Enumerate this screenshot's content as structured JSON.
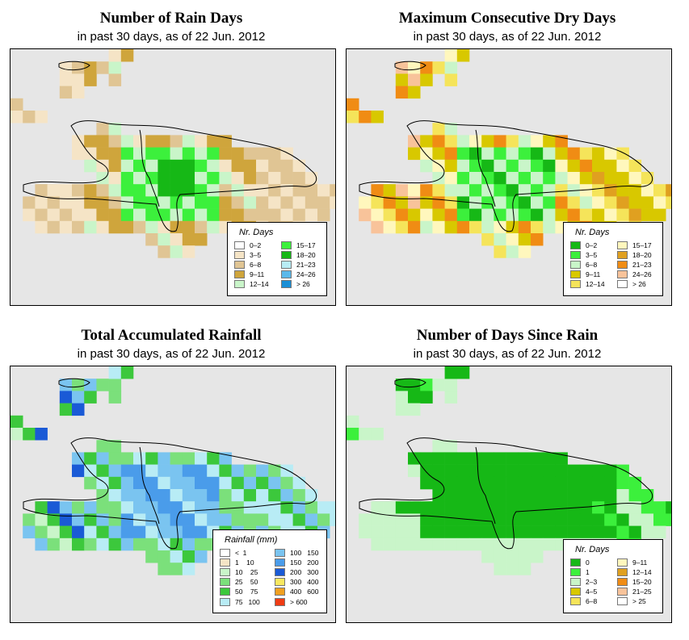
{
  "panels": [
    {
      "title": "Number of Rain Days",
      "subtitle": "in past 30 days, as of  22 Jun. 2012",
      "legend": {
        "title": "Nr. Days",
        "items": [
          {
            "label": "0–2",
            "color": "#ffffff"
          },
          {
            "label": "3–5",
            "color": "#f5e4c6"
          },
          {
            "label": "6–8",
            "color": "#e0c594"
          },
          {
            "label": "9–11",
            "color": "#cfa53c"
          },
          {
            "label": "12–14",
            "color": "#c9f5c9"
          },
          {
            "label": "15–17",
            "color": "#3cf03c"
          },
          {
            "label": "18–20",
            "color": "#16b816"
          },
          {
            "label": "21–23",
            "color": "#b8ecf5"
          },
          {
            "label": "24–26",
            "color": "#5ab8ea"
          },
          {
            "label": "> 26",
            "color": "#1a8fd6"
          }
        ]
      }
    },
    {
      "title": "Maximum Consecutive Dry Days",
      "subtitle": "in past 30 days, as of  22 Jun. 2012",
      "legend": {
        "title": "Nr. Days",
        "items": [
          {
            "label": "0–2",
            "color": "#16b816"
          },
          {
            "label": "3–5",
            "color": "#3cf03c"
          },
          {
            "label": "6–8",
            "color": "#c9f5c9"
          },
          {
            "label": "9–11",
            "color": "#d8c800"
          },
          {
            "label": "12–14",
            "color": "#f5e45a"
          },
          {
            "label": "15–17",
            "color": "#fff7bd"
          },
          {
            "label": "18–20",
            "color": "#e0a020"
          },
          {
            "label": "21–23",
            "color": "#f08c14"
          },
          {
            "label": "24–26",
            "color": "#f8c39a"
          },
          {
            "label": "> 26",
            "color": "#ffffff"
          }
        ]
      }
    },
    {
      "title": "Total Accumulated Rainfall",
      "subtitle": "in past 30 days, as of  22 Jun. 2012",
      "legend": {
        "title": "Rainfall (mm)",
        "items": [
          {
            "label": "<  1",
            "color": "#ffffff"
          },
          {
            "label": "1    10",
            "color": "#f5e4c6"
          },
          {
            "label": "10    25",
            "color": "#c9f5c9"
          },
          {
            "label": "25    50",
            "color": "#7be07b"
          },
          {
            "label": "50    75",
            "color": "#3cc83c"
          },
          {
            "label": "75   100",
            "color": "#b8ecf5"
          },
          {
            "label": "100   150",
            "color": "#7ac4f0"
          },
          {
            "label": "150   200",
            "color": "#4a9cea"
          },
          {
            "label": "200   300",
            "color": "#1a5ad6"
          },
          {
            "label": "300   400",
            "color": "#f8e860"
          },
          {
            "label": "400   600",
            "color": "#f0a020"
          },
          {
            "label": "> 600",
            "color": "#f03c14"
          }
        ]
      }
    },
    {
      "title": "Number of Days Since Rain",
      "subtitle": "in past 30 days, as of  22 Jun. 2012",
      "legend": {
        "title": "Nr. Days",
        "items": [
          {
            "label": "0",
            "color": "#16b816"
          },
          {
            "label": "1",
            "color": "#3cf03c"
          },
          {
            "label": "2–3",
            "color": "#c9f5c9"
          },
          {
            "label": "4–5",
            "color": "#d8c800"
          },
          {
            "label": "6–8",
            "color": "#f5e45a"
          },
          {
            "label": "9–11",
            "color": "#fff7bd"
          },
          {
            "label": "12–14",
            "color": "#e0a020"
          },
          {
            "label": "15–20",
            "color": "#f08c14"
          },
          {
            "label": "21–25",
            "color": "#f8c39a"
          },
          {
            "label": "> 25",
            "color": "#ffffff"
          }
        ]
      }
    }
  ]
}
